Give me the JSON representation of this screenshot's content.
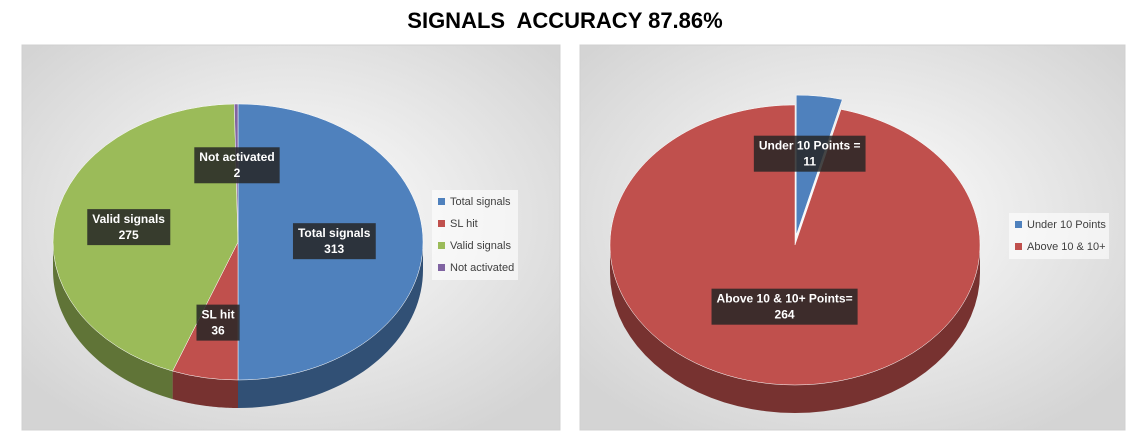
{
  "title": "SIGNALS  ACCURACY 87.86%",
  "chart_data": [
    {
      "type": "pie",
      "categories": [
        "Total signals",
        "SL hit",
        "Valid signals",
        "Not activated"
      ],
      "values": [
        313,
        36,
        275,
        2
      ],
      "colors": [
        "#4f81bd",
        "#c0504d",
        "#9bbb59",
        "#8064a2"
      ],
      "legend": "right"
    },
    {
      "type": "pie",
      "categories": [
        "Under 10 Points",
        "Above 10 & 10+"
      ],
      "label_names": [
        "Under 10 Points =",
        "Above 10 & 10+ Points="
      ],
      "values": [
        11,
        264
      ],
      "colors": [
        "#4f81bd",
        "#c0504d"
      ],
      "legend": "right"
    }
  ]
}
